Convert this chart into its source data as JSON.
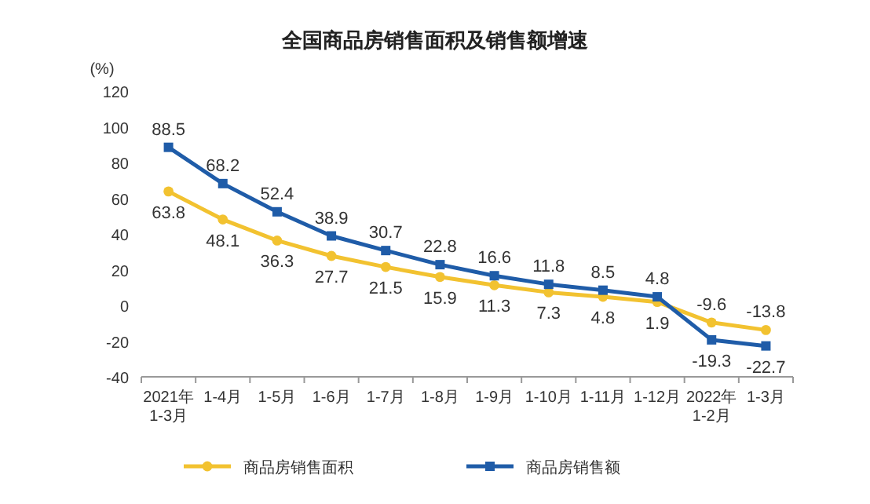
{
  "chart_data": {
    "type": "line",
    "title": "全国商品房销售面积及销售额增速",
    "ylabel": "(%)",
    "categories": [
      "2021年\n1-3月",
      "1-4月",
      "1-5月",
      "1-6月",
      "1-7月",
      "1-8月",
      "1-9月",
      "1-10月",
      "1-11月",
      "1-12月",
      "2022年\n1-2月",
      "1-3月"
    ],
    "series": [
      {
        "name": "商品房销售面积",
        "color": "#f2c230",
        "marker": "circle",
        "values": [
          63.8,
          48.1,
          36.3,
          27.7,
          21.5,
          15.9,
          11.3,
          7.3,
          4.8,
          1.9,
          -9.6,
          -13.8
        ]
      },
      {
        "name": "商品房销售额",
        "color": "#1f5ca8",
        "marker": "square",
        "values": [
          88.5,
          68.2,
          52.4,
          38.9,
          30.7,
          22.8,
          16.6,
          11.8,
          8.5,
          4.8,
          -19.3,
          -22.7
        ]
      }
    ],
    "ylim": [
      -40,
      120
    ],
    "yticks": [
      -40,
      -20,
      0,
      20,
      40,
      60,
      80,
      100,
      120
    ],
    "data_labels": true,
    "legend": "bottom",
    "grid": false
  }
}
